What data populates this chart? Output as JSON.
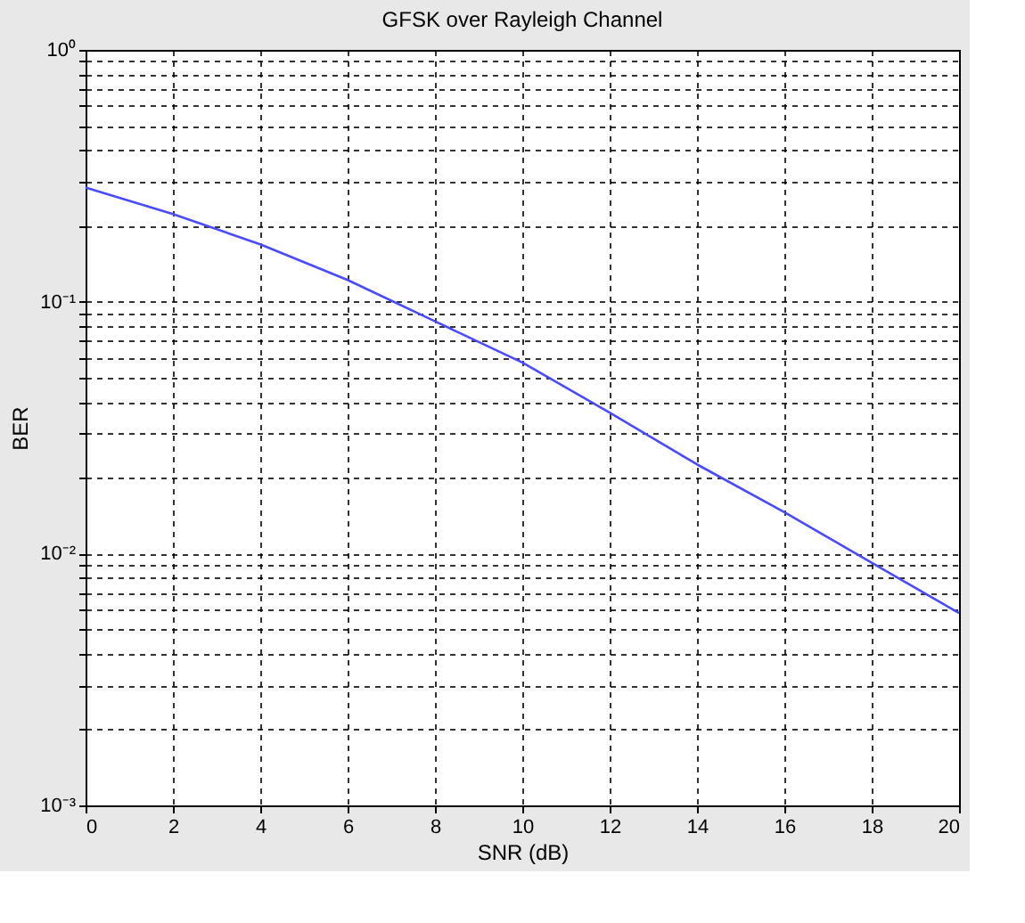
{
  "chart_data": {
    "type": "line",
    "title": "GFSK over Rayleigh Channel",
    "xlabel": "SNR (dB)",
    "ylabel": "BER",
    "x": [
      0,
      2,
      4,
      6,
      8,
      10,
      12,
      14,
      16,
      18,
      20
    ],
    "series": [
      {
        "color": "#4a4aff",
        "values": [
          0.284,
          0.223,
          0.169,
          0.122,
          0.0836,
          0.0574,
          0.0363,
          0.0226,
          0.0146,
          0.0092,
          0.0058
        ]
      }
    ],
    "log": "y",
    "xlim": [
      0,
      20
    ],
    "xticks": [
      0,
      2,
      4,
      6,
      8,
      10,
      12,
      14,
      16,
      18,
      20
    ],
    "ylim": [
      0.001,
      1
    ],
    "yticks": [
      {
        "value": 0.001,
        "label": "10⁻³"
      },
      {
        "value": 0.002,
        "label": null
      },
      {
        "value": 0.003,
        "label": null
      },
      {
        "value": 0.004,
        "label": null
      },
      {
        "value": 0.005,
        "label": null
      },
      {
        "value": 0.006,
        "label": null
      },
      {
        "value": 0.007,
        "label": null
      },
      {
        "value": 0.008,
        "label": null
      },
      {
        "value": 0.009,
        "label": null
      },
      {
        "value": 0.01,
        "label": "10⁻²"
      },
      {
        "value": 0.02,
        "label": null
      },
      {
        "value": 0.03,
        "label": null
      },
      {
        "value": 0.04,
        "label": null
      },
      {
        "value": 0.05,
        "label": null
      },
      {
        "value": 0.06,
        "label": null
      },
      {
        "value": 0.07,
        "label": null
      },
      {
        "value": 0.08,
        "label": null
      },
      {
        "value": 0.09,
        "label": null
      },
      {
        "value": 0.1,
        "label": "10⁻¹"
      },
      {
        "value": 0.2,
        "label": null
      },
      {
        "value": 0.3,
        "label": null
      },
      {
        "value": 0.4,
        "label": null
      },
      {
        "value": 0.5,
        "label": null
      },
      {
        "value": 0.6,
        "label": null
      },
      {
        "value": 0.7,
        "label": null
      },
      {
        "value": 0.8,
        "label": null
      },
      {
        "value": 0.9,
        "label": null
      },
      {
        "value": 1,
        "label": "10⁰"
      }
    ],
    "grid": true,
    "line_style": "solid",
    "marker": "none"
  }
}
